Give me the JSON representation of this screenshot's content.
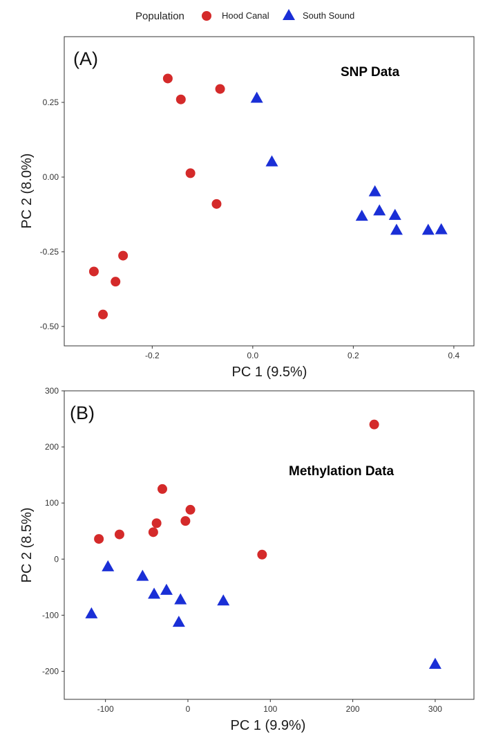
{
  "legend": {
    "title": "Population",
    "items": [
      {
        "label": "Hood Canal",
        "shape": "circle",
        "color": "#d42a2a"
      },
      {
        "label": "South Sound",
        "shape": "triangle",
        "color": "#1a2fd6"
      }
    ]
  },
  "chart_data": [
    {
      "type": "scatter",
      "tag": "(A)",
      "annotation": "SNP Data",
      "xlabel": "PC 1 (9.5%)",
      "ylabel": "PC 2 (8.0%)",
      "xlim": [
        -0.375,
        0.44
      ],
      "ylim": [
        -0.565,
        0.47
      ],
      "xticks": [
        -0.2,
        0.0,
        0.2,
        0.4
      ],
      "xtick_labels": [
        "-0.2",
        "0.0",
        "0.2",
        "0.4"
      ],
      "yticks": [
        -0.5,
        -0.25,
        0.0,
        0.25
      ],
      "ytick_labels": [
        "-0.50",
        "-0.25",
        "0.00",
        "0.25"
      ],
      "grid": false,
      "series": [
        {
          "name": "Hood Canal",
          "points": [
            [
              -0.169,
              0.33
            ],
            [
              -0.143,
              0.26
            ],
            [
              -0.065,
              0.295
            ],
            [
              -0.124,
              0.013
            ],
            [
              -0.072,
              -0.09
            ],
            [
              -0.258,
              -0.263
            ],
            [
              -0.316,
              -0.316
            ],
            [
              -0.273,
              -0.35
            ],
            [
              -0.298,
              -0.46
            ]
          ]
        },
        {
          "name": "South Sound",
          "points": [
            [
              0.008,
              0.265
            ],
            [
              0.038,
              0.052
            ],
            [
              0.243,
              -0.048
            ],
            [
              0.252,
              -0.112
            ],
            [
              0.217,
              -0.13
            ],
            [
              0.283,
              -0.127
            ],
            [
              0.286,
              -0.177
            ],
            [
              0.349,
              -0.177
            ],
            [
              0.375,
              -0.175
            ]
          ]
        }
      ]
    },
    {
      "type": "scatter",
      "tag": "(B)",
      "annotation": "Methylation Data",
      "xlabel": "PC 1 (9.9%)",
      "ylabel": "PC 2 (8.5%)",
      "xlim": [
        -150,
        347
      ],
      "ylim": [
        -250,
        300
      ],
      "xticks": [
        -100,
        0,
        100,
        200,
        300
      ],
      "xtick_labels": [
        "-100",
        "0",
        "100",
        "200",
        "300"
      ],
      "yticks": [
        -200,
        -100,
        0,
        100,
        200,
        300
      ],
      "ytick_labels": [
        "-200",
        "-100",
        "0",
        "100",
        "200",
        "300"
      ],
      "grid": false,
      "series": [
        {
          "name": "Hood Canal",
          "points": [
            [
              226,
              240
            ],
            [
              -31,
              125
            ],
            [
              3,
              88
            ],
            [
              -38,
              64
            ],
            [
              -3,
              68
            ],
            [
              -42,
              48
            ],
            [
              -83,
              44
            ],
            [
              -108,
              36
            ],
            [
              90,
              8
            ]
          ]
        },
        {
          "name": "South Sound",
          "points": [
            [
              -97,
              -13
            ],
            [
              -55,
              -30
            ],
            [
              -26,
              -55
            ],
            [
              -41,
              -62
            ],
            [
              -9,
              -72
            ],
            [
              43,
              -74
            ],
            [
              -117,
              -97
            ],
            [
              -11,
              -112
            ],
            [
              300,
              -187
            ]
          ]
        }
      ]
    }
  ]
}
